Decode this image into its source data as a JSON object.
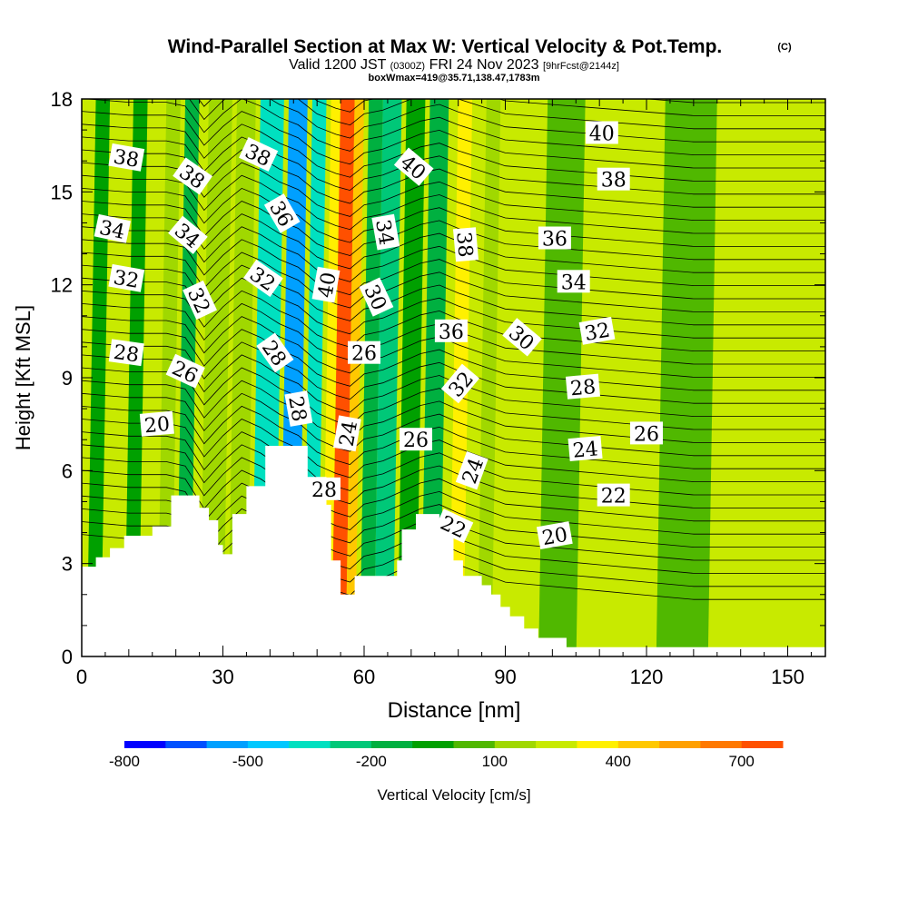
{
  "title": "Wind-Parallel Section at Max W: Vertical Velocity & Pot.Temp.",
  "copyright": "(C)",
  "subtitle_pre": "Valid 1200 JST",
  "subtitle_z": "(0300Z)",
  "subtitle_post": "FRI 24 Nov 2023",
  "subtitle_fcst": "[9hrFcst@2144z]",
  "subsubtitle": "boxWmax=419@35.71,138.47,1783m",
  "chart_data": {
    "type": "heatmap",
    "title": "Wind-Parallel Section at Max W: Vertical Velocity & Pot.Temp.",
    "xlabel": "Distance [nm]",
    "ylabel": "Height [Kft MSL]",
    "xlim": [
      0,
      158
    ],
    "ylim": [
      0,
      18
    ],
    "x_ticks": [
      0,
      30,
      60,
      90,
      120,
      150
    ],
    "y_ticks": [
      0,
      3,
      6,
      9,
      12,
      15,
      18
    ],
    "x_tick_labels": [
      "0",
      "30",
      "60",
      "90",
      "120",
      "150"
    ],
    "y_tick_labels": [
      "0",
      "3",
      "6",
      "9",
      "12",
      "15",
      "18"
    ],
    "colorbar": {
      "label": "Vertical Velocity [cm/s]",
      "min": -800,
      "max": 800,
      "step": 100,
      "tick_values": [
        -800,
        -500,
        -200,
        100,
        400,
        700
      ],
      "tick_labels": [
        "-800",
        "-500",
        "-200",
        "100",
        "400",
        "700"
      ],
      "colors": [
        "#0000ff",
        "#0050ff",
        "#00a0ff",
        "#00c8ff",
        "#00e0c0",
        "#00c878",
        "#00b040",
        "#00a000",
        "#50b800",
        "#a0d800",
        "#c8ea00",
        "#fff000",
        "#ffc800",
        "#ffa000",
        "#ff7800",
        "#ff5000",
        "#ff2800",
        "#e00000",
        "#b40028",
        "#a00050",
        "#800080",
        "#5a0090"
      ]
    },
    "vertical_velocity_bands": [
      {
        "x_range": [
          3,
          6
        ],
        "w": -80
      },
      {
        "x_range": [
          11,
          14
        ],
        "w": -40
      },
      {
        "x_range": [
          18,
          21
        ],
        "w": 110
      },
      {
        "x_range": [
          22,
          25
        ],
        "w": -120
      },
      {
        "x_range": [
          27,
          32
        ],
        "w": 140
      },
      {
        "x_range": [
          33,
          37
        ],
        "w": 180
      },
      {
        "x_range": [
          38,
          43
        ],
        "w": -320
      },
      {
        "x_range": [
          44,
          48
        ],
        "w": -520
      },
      {
        "x_range": [
          49,
          52
        ],
        "w": -400
      },
      {
        "x_range": [
          53,
          55
        ],
        "w": 350
      },
      {
        "x_range": [
          55,
          58
        ],
        "w": 700
      },
      {
        "x_range": [
          58,
          60
        ],
        "w": 420
      },
      {
        "x_range": [
          61,
          64
        ],
        "w": -150
      },
      {
        "x_range": [
          64,
          68
        ],
        "w": -260
      },
      {
        "x_range": [
          69,
          73
        ],
        "w": -80
      },
      {
        "x_range": [
          74,
          78
        ],
        "w": -190
      },
      {
        "x_range": [
          80,
          83
        ],
        "w": 330
      },
      {
        "x_range": [
          83,
          86
        ],
        "w": 240
      },
      {
        "x_range": [
          86,
          89
        ],
        "w": 110
      },
      {
        "x_range": [
          99,
          107
        ],
        "w": 90
      },
      {
        "x_range": [
          124,
          135
        ],
        "w": 70
      }
    ],
    "terrain": [
      {
        "x": 0,
        "y": 2.9
      },
      {
        "x": 3,
        "y": 2.9
      },
      {
        "x": 3,
        "y": 3.2
      },
      {
        "x": 6,
        "y": 3.2
      },
      {
        "x": 6,
        "y": 3.5
      },
      {
        "x": 9,
        "y": 3.5
      },
      {
        "x": 9,
        "y": 3.9
      },
      {
        "x": 15,
        "y": 3.9
      },
      {
        "x": 15,
        "y": 4.2
      },
      {
        "x": 19,
        "y": 4.2
      },
      {
        "x": 19,
        "y": 5.2
      },
      {
        "x": 25,
        "y": 5.2
      },
      {
        "x": 25,
        "y": 4.8
      },
      {
        "x": 27,
        "y": 4.8
      },
      {
        "x": 27,
        "y": 4.4
      },
      {
        "x": 29,
        "y": 4.4
      },
      {
        "x": 29,
        "y": 3.6
      },
      {
        "x": 30,
        "y": 3.6
      },
      {
        "x": 30,
        "y": 3.3
      },
      {
        "x": 32,
        "y": 3.3
      },
      {
        "x": 32,
        "y": 4.6
      },
      {
        "x": 35,
        "y": 4.6
      },
      {
        "x": 35,
        "y": 5.5
      },
      {
        "x": 39,
        "y": 5.5
      },
      {
        "x": 39,
        "y": 6.8
      },
      {
        "x": 48,
        "y": 6.8
      },
      {
        "x": 48,
        "y": 5.8
      },
      {
        "x": 52,
        "y": 5.8
      },
      {
        "x": 52,
        "y": 4.9
      },
      {
        "x": 53,
        "y": 4.9
      },
      {
        "x": 53,
        "y": 3.1
      },
      {
        "x": 55,
        "y": 3.1
      },
      {
        "x": 55,
        "y": 2.0
      },
      {
        "x": 58,
        "y": 2.0
      },
      {
        "x": 58,
        "y": 2.6
      },
      {
        "x": 67,
        "y": 2.6
      },
      {
        "x": 67,
        "y": 3.1
      },
      {
        "x": 68,
        "y": 3.1
      },
      {
        "x": 68,
        "y": 4.1
      },
      {
        "x": 71,
        "y": 4.1
      },
      {
        "x": 71,
        "y": 4.6
      },
      {
        "x": 76,
        "y": 4.6
      },
      {
        "x": 76,
        "y": 4.1
      },
      {
        "x": 79,
        "y": 4.1
      },
      {
        "x": 79,
        "y": 3.1
      },
      {
        "x": 81,
        "y": 3.1
      },
      {
        "x": 81,
        "y": 2.6
      },
      {
        "x": 85,
        "y": 2.6
      },
      {
        "x": 85,
        "y": 2.3
      },
      {
        "x": 87,
        "y": 2.3
      },
      {
        "x": 87,
        "y": 2.0
      },
      {
        "x": 89,
        "y": 2.0
      },
      {
        "x": 89,
        "y": 1.6
      },
      {
        "x": 91,
        "y": 1.6
      },
      {
        "x": 91,
        "y": 1.3
      },
      {
        "x": 94,
        "y": 1.3
      },
      {
        "x": 94,
        "y": 0.9
      },
      {
        "x": 97,
        "y": 0.9
      },
      {
        "x": 97,
        "y": 0.6
      },
      {
        "x": 103,
        "y": 0.6
      },
      {
        "x": 103,
        "y": 0.3
      },
      {
        "x": 158,
        "y": 0.3
      },
      {
        "x": 158,
        "y": 0
      },
      {
        "x": 0,
        "y": 0
      }
    ],
    "isentropes": {
      "x": [
        0,
        10,
        18,
        22,
        26,
        30,
        34,
        38,
        42,
        46,
        50,
        54,
        57,
        60,
        64,
        68,
        72,
        76,
        80,
        85,
        90,
        100,
        110,
        120,
        130,
        140,
        150,
        158
      ],
      "base": [
        3.5,
        3.4,
        3.4,
        3.3,
        2.6,
        3.1,
        3.5,
        3.3,
        3.0,
        2.8,
        2.4,
        2.2,
        2.1,
        2.4,
        2.5,
        2.7,
        2.9,
        3.0,
        2.8,
        2.6,
        2.4,
        2.3,
        2.2,
        2.1,
        2.0,
        2.0,
        2.0,
        2.0
      ],
      "spacing": 0.42,
      "count": 40
    },
    "contour_labels": [
      {
        "text": "38",
        "x": 9.5,
        "y": 16.1,
        "angle": 10
      },
      {
        "text": "38",
        "x": 23.5,
        "y": 15.5,
        "angle": 35
      },
      {
        "text": "38",
        "x": 37.5,
        "y": 16.2,
        "angle": 25
      },
      {
        "text": "40",
        "x": 70.5,
        "y": 15.8,
        "angle": 40
      },
      {
        "text": "40",
        "x": 110.5,
        "y": 16.9,
        "angle": 0
      },
      {
        "text": "38",
        "x": 113,
        "y": 15.4,
        "angle": 0
      },
      {
        "text": "34",
        "x": 6.5,
        "y": 13.8,
        "angle": 12
      },
      {
        "text": "34",
        "x": 22.5,
        "y": 13.6,
        "angle": 40
      },
      {
        "text": "36",
        "x": 42.5,
        "y": 14.3,
        "angle": 60
      },
      {
        "text": "34",
        "x": 64.5,
        "y": 13.7,
        "angle": 80
      },
      {
        "text": "38",
        "x": 81.5,
        "y": 13.3,
        "angle": 85
      },
      {
        "text": "36",
        "x": 100.5,
        "y": 13.5,
        "angle": 0
      },
      {
        "text": "32",
        "x": 9.5,
        "y": 12.2,
        "angle": 10
      },
      {
        "text": "32",
        "x": 38.5,
        "y": 12.2,
        "angle": 35
      },
      {
        "text": "40",
        "x": 52,
        "y": 12.0,
        "angle": -80
      },
      {
        "text": "32",
        "x": 25,
        "y": 11.5,
        "angle": 65
      },
      {
        "text": "30",
        "x": 62.5,
        "y": 11.6,
        "angle": 65
      },
      {
        "text": "34",
        "x": 104.5,
        "y": 12.1,
        "angle": 0
      },
      {
        "text": "32",
        "x": 109.5,
        "y": 10.5,
        "angle": -10
      },
      {
        "text": "36",
        "x": 78.5,
        "y": 10.5,
        "angle": 0
      },
      {
        "text": "30",
        "x": 93.5,
        "y": 10.3,
        "angle": 40
      },
      {
        "text": "28",
        "x": 9.5,
        "y": 9.8,
        "angle": 8
      },
      {
        "text": "28",
        "x": 41,
        "y": 9.8,
        "angle": 55
      },
      {
        "text": "26",
        "x": 60,
        "y": 9.8,
        "angle": 0
      },
      {
        "text": "26",
        "x": 22,
        "y": 9.2,
        "angle": 25
      },
      {
        "text": "32",
        "x": 80.5,
        "y": 8.8,
        "angle": -50
      },
      {
        "text": "28",
        "x": 106.5,
        "y": 8.7,
        "angle": -5
      },
      {
        "text": "28",
        "x": 46,
        "y": 8.0,
        "angle": 80
      },
      {
        "text": "20",
        "x": 16,
        "y": 7.5,
        "angle": -5
      },
      {
        "text": "24",
        "x": 56.5,
        "y": 7.2,
        "angle": -80
      },
      {
        "text": "26",
        "x": 71,
        "y": 7.0,
        "angle": 0
      },
      {
        "text": "26",
        "x": 120,
        "y": 7.2,
        "angle": 0
      },
      {
        "text": "24",
        "x": 107,
        "y": 6.7,
        "angle": -5
      },
      {
        "text": "24",
        "x": 83,
        "y": 6.0,
        "angle": -70
      },
      {
        "text": "28",
        "x": 51.5,
        "y": 5.4,
        "angle": 0
      },
      {
        "text": "22",
        "x": 113,
        "y": 5.2,
        "angle": 0
      },
      {
        "text": "22",
        "x": 79,
        "y": 4.2,
        "angle": 25
      },
      {
        "text": "20",
        "x": 100.5,
        "y": 3.9,
        "angle": -10
      }
    ]
  },
  "colors": {
    "terrain": "#ffffff",
    "contour": "#000000",
    "background_field": "#c8ea00",
    "frame": "#000000"
  }
}
